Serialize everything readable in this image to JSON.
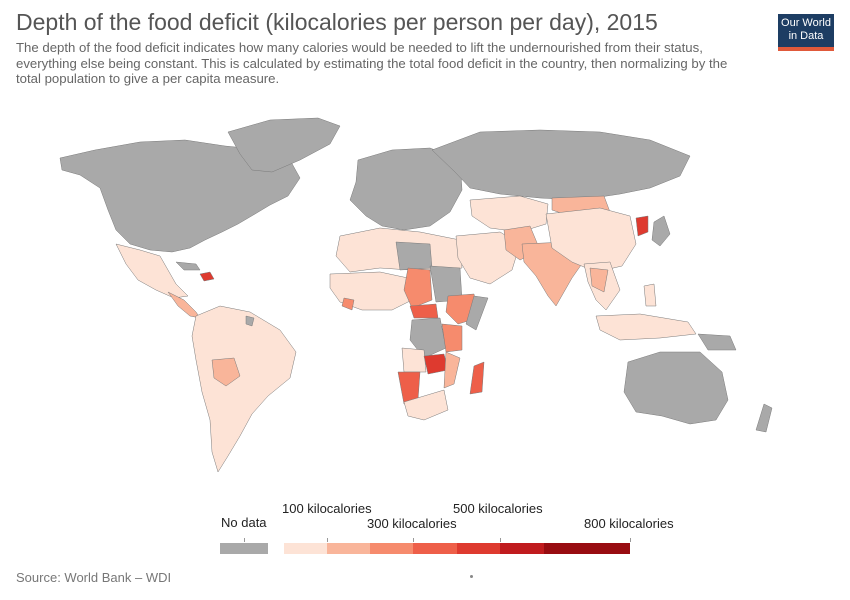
{
  "header": {
    "title": "Depth of the food deficit (kilocalories per person per day), 2015",
    "subtitle": "The depth of the food deficit indicates how many calories would be needed to lift the undernourished from their status, everything else being constant. This is calculated by estimating the total food deficit in the country, then normalizing by the total population to give a per capita measure."
  },
  "logo": {
    "line1": "Our World",
    "line2": "in Data"
  },
  "legend": {
    "no_data_label": "No data",
    "no_data_color": "#a9a9a9",
    "labels": {
      "l100": "100 kilocalories",
      "l300": "300 kilocalories",
      "l500": "500 kilocalories",
      "l800": "800 kilocalories"
    },
    "bins": [
      {
        "color": "#fde3d6"
      },
      {
        "color": "#f9b59a"
      },
      {
        "color": "#f68b6d"
      },
      {
        "color": "#ee5f49"
      },
      {
        "color": "#de3a2f"
      },
      {
        "color": "#c01b1e"
      },
      {
        "color": "#980c11"
      }
    ]
  },
  "footer": {
    "source": "Source: World Bank – WDI"
  }
}
